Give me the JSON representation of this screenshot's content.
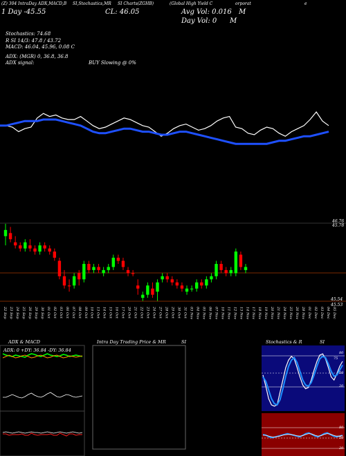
{
  "header": {
    "line1": "(Z) 304 IntraDay ADX,MACD,B       SI,Stochastics,MR",
    "line2_left": "(Z) 304 IntraDay ADX,MACD,B",
    "line2_mid": "SI,Stochastics,MR",
    "line2_right": "SI Charts(ZGHB)",
    "company": "(Global High Yield C",
    "company_tail": "orporat",
    "tail_char": "e"
  },
  "stats": {
    "day_chg": "1 Day -45.55",
    "close": "CL: 46.05",
    "avg_vol": "Avg Vol: 0.016",
    "avg_vol_unit": "M",
    "day_vol": "Day Vol: 0",
    "day_vol_unit": "M",
    "stoch": "Stochastics: 74.68",
    "rsi": "R         SI 14/3: 47.8  / 43.72",
    "macd": "MACD: 46.04, 45.96,  0.08  C",
    "adx": "ADX:                      (MGR) 0,  36.8,  36.8",
    "adx_signal": "ADX  signal:",
    "buy_signal": "BUY Slowing @ 0%"
  },
  "price_labels": {
    "top_right": "46.76",
    "top_right2": "45.78",
    "bottom_right": "45.54",
    "bottom_right2": "45.53"
  },
  "date_labels": [
    "22 Sep",
    "23 Sep",
    "24 Sep",
    "25 Sep",
    "26 Sep",
    "29 Sep",
    "30 Sep",
    "01 Oct",
    "02 Oct",
    "03 Oct",
    "06 Oct",
    "07 Oct",
    "08 Oct",
    "09 Oct",
    "10 Oct",
    "13 Oct",
    "14 Oct",
    "15 Oct",
    "16 Oct",
    "17 Oct",
    "20 Oct",
    "21 Oct",
    "22 Oct",
    "23 Oct",
    "24 Oct",
    "27 Oct",
    "28 Oct",
    "29 Oct",
    "30 Oct",
    "31 Oct",
    "03 Nov",
    "04 Nov",
    "05 Nov",
    "06 Nov",
    "07 Nov",
    "10 Nov",
    "11 Nov",
    "12 Nov",
    "13 Nov",
    "14 Nov",
    "17 Nov",
    "18 Nov",
    "19 Nov",
    "20 Nov",
    "21 Nov",
    "24 Nov",
    "25 Nov",
    "26 Nov",
    "28 Nov",
    "01 Dec",
    "02 Dec",
    "03 Dec",
    "04 Dec",
    "05 Dec"
  ],
  "panels": {
    "adx_title": "ADX  & MACD",
    "adx_values": "ADX: 0   +DY: 36.84   -DY: 36.84",
    "intraday_title": "Intra  Day Trading Price  & MR",
    "intraday_si": "SI",
    "stoch_title": "Stochastics & R",
    "stoch_si": "SI",
    "stoch_levels": [
      "80",
      "50",
      "20"
    ],
    "rsi_levels": [
      "80",
      "50",
      "20"
    ],
    "stoch_value": "75"
  },
  "colors": {
    "up": "#00ff00",
    "down": "#ff0000",
    "ma": "#1e50ff",
    "price": "#ffffff",
    "stoch_bg": "#0a0a7a",
    "rsi_bg": "#8a0000"
  },
  "chart_data": {
    "type": "candlestick",
    "title": "",
    "candles": [
      {
        "o": 45.74,
        "h": 45.78,
        "l": 45.71,
        "c": 45.76,
        "dir": "up"
      },
      {
        "o": 45.75,
        "h": 45.77,
        "l": 45.72,
        "c": 45.73,
        "dir": "down"
      },
      {
        "o": 45.72,
        "h": 45.74,
        "l": 45.7,
        "c": 45.71,
        "dir": "down"
      },
      {
        "o": 45.71,
        "h": 45.72,
        "l": 45.69,
        "c": 45.7,
        "dir": "down"
      },
      {
        "o": 45.7,
        "h": 45.73,
        "l": 45.69,
        "c": 45.72,
        "dir": "up"
      },
      {
        "o": 45.71,
        "h": 45.73,
        "l": 45.69,
        "c": 45.7,
        "dir": "down"
      },
      {
        "o": 45.7,
        "h": 45.71,
        "l": 45.68,
        "c": 45.69,
        "dir": "down"
      },
      {
        "o": 45.69,
        "h": 45.72,
        "l": 45.68,
        "c": 45.71,
        "dir": "up"
      },
      {
        "o": 45.71,
        "h": 45.72,
        "l": 45.69,
        "c": 45.7,
        "dir": "down"
      },
      {
        "o": 45.7,
        "h": 45.71,
        "l": 45.68,
        "c": 45.69,
        "dir": "down"
      },
      {
        "o": 45.69,
        "h": 45.7,
        "l": 45.66,
        "c": 45.67,
        "dir": "down"
      },
      {
        "o": 45.66,
        "h": 45.67,
        "l": 45.6,
        "c": 45.61,
        "dir": "down"
      },
      {
        "o": 45.61,
        "h": 45.63,
        "l": 45.57,
        "c": 45.58,
        "dir": "down"
      },
      {
        "o": 45.58,
        "h": 45.6,
        "l": 45.56,
        "c": 45.58,
        "dir": "down"
      },
      {
        "o": 45.58,
        "h": 45.62,
        "l": 45.57,
        "c": 45.61,
        "dir": "up"
      },
      {
        "o": 45.62,
        "h": 45.63,
        "l": 45.58,
        "c": 45.6,
        "dir": "down"
      },
      {
        "o": 45.6,
        "h": 45.66,
        "l": 45.59,
        "c": 45.65,
        "dir": "up"
      },
      {
        "o": 45.65,
        "h": 45.66,
        "l": 45.62,
        "c": 45.63,
        "dir": "down"
      },
      {
        "o": 45.63,
        "h": 45.65,
        "l": 45.62,
        "c": 45.64,
        "dir": "up"
      },
      {
        "o": 45.64,
        "h": 45.65,
        "l": 45.62,
        "c": 45.63,
        "dir": "down"
      },
      {
        "o": 45.62,
        "h": 45.64,
        "l": 45.61,
        "c": 45.63,
        "dir": "up"
      },
      {
        "o": 45.63,
        "h": 45.65,
        "l": 45.62,
        "c": 45.64,
        "dir": "up"
      },
      {
        "o": 45.64,
        "h": 45.68,
        "l": 45.63,
        "c": 45.67,
        "dir": "up"
      },
      {
        "o": 45.67,
        "h": 45.68,
        "l": 45.65,
        "c": 45.66,
        "dir": "down"
      },
      {
        "o": 45.66,
        "h": 45.67,
        "l": 45.63,
        "c": 45.64,
        "dir": "down"
      },
      {
        "o": 45.63,
        "h": 45.64,
        "l": 45.61,
        "c": 45.62,
        "dir": "down"
      },
      {
        "o": 45.62,
        "h": 45.63,
        "l": 45.61,
        "c": 45.62,
        "dir": "down"
      },
      {
        "o": 45.58,
        "h": 45.6,
        "l": 45.55,
        "c": 45.57,
        "dir": "down"
      },
      {
        "o": 45.54,
        "h": 45.56,
        "l": 45.53,
        "c": 45.55,
        "dir": "up"
      },
      {
        "o": 45.55,
        "h": 45.59,
        "l": 45.54,
        "c": 45.58,
        "dir": "up"
      },
      {
        "o": 45.57,
        "h": 45.59,
        "l": 45.54,
        "c": 45.55,
        "dir": "down"
      },
      {
        "o": 45.56,
        "h": 45.6,
        "l": 45.53,
        "c": 45.59,
        "dir": "up"
      },
      {
        "o": 45.6,
        "h": 45.62,
        "l": 45.59,
        "c": 45.61,
        "dir": "up"
      },
      {
        "o": 45.61,
        "h": 45.62,
        "l": 45.59,
        "c": 45.6,
        "dir": "down"
      },
      {
        "o": 45.6,
        "h": 45.61,
        "l": 45.58,
        "c": 45.59,
        "dir": "down"
      },
      {
        "o": 45.59,
        "h": 45.6,
        "l": 45.57,
        "c": 45.58,
        "dir": "down"
      },
      {
        "o": 45.58,
        "h": 45.59,
        "l": 45.56,
        "c": 45.57,
        "dir": "down"
      },
      {
        "o": 45.56,
        "h": 45.58,
        "l": 45.55,
        "c": 45.57,
        "dir": "up"
      },
      {
        "o": 45.57,
        "h": 45.58,
        "l": 45.56,
        "c": 45.57,
        "dir": "up"
      },
      {
        "o": 45.57,
        "h": 45.6,
        "l": 45.56,
        "c": 45.59,
        "dir": "up"
      },
      {
        "o": 45.59,
        "h": 45.6,
        "l": 45.57,
        "c": 45.58,
        "dir": "down"
      },
      {
        "o": 45.58,
        "h": 45.61,
        "l": 45.57,
        "c": 45.6,
        "dir": "up"
      },
      {
        "o": 45.6,
        "h": 45.62,
        "l": 45.59,
        "c": 45.61,
        "dir": "up"
      },
      {
        "o": 45.61,
        "h": 45.66,
        "l": 45.6,
        "c": 45.65,
        "dir": "up"
      },
      {
        "o": 45.65,
        "h": 45.66,
        "l": 45.62,
        "c": 45.63,
        "dir": "down"
      },
      {
        "o": 45.63,
        "h": 45.64,
        "l": 45.61,
        "c": 45.62,
        "dir": "down"
      },
      {
        "o": 45.62,
        "h": 45.64,
        "l": 45.61,
        "c": 45.63,
        "dir": "up"
      },
      {
        "o": 45.62,
        "h": 45.7,
        "l": 45.61,
        "c": 45.69,
        "dir": "up"
      },
      {
        "o": 45.68,
        "h": 45.69,
        "l": 45.63,
        "c": 45.64,
        "dir": "down"
      },
      {
        "o": 45.63,
        "h": 45.65,
        "l": 45.62,
        "c": 45.64,
        "dir": "up"
      }
    ],
    "price_line": [
      62,
      62,
      60,
      54,
      58,
      60,
      72,
      78,
      74,
      76,
      72,
      70,
      70,
      74,
      68,
      62,
      58,
      60,
      64,
      68,
      72,
      70,
      66,
      62,
      60,
      54,
      48,
      52,
      58,
      62,
      64,
      60,
      56,
      58,
      62,
      68,
      72,
      74,
      60,
      58,
      52,
      50,
      56,
      60,
      58,
      52,
      48,
      54,
      58,
      62,
      70,
      80,
      68,
      62
    ],
    "ma_line": [
      62,
      62,
      64,
      66,
      68,
      68,
      68,
      70,
      70,
      70,
      68,
      66,
      64,
      62,
      58,
      54,
      52,
      52,
      54,
      56,
      58,
      58,
      56,
      54,
      54,
      52,
      50,
      50,
      52,
      54,
      54,
      52,
      50,
      48,
      46,
      44,
      42,
      40,
      38,
      38,
      38,
      38,
      38,
      38,
      40,
      42,
      42,
      44,
      46,
      48,
      48,
      50,
      52,
      54
    ],
    "ylim": [
      45.52,
      45.8
    ]
  }
}
